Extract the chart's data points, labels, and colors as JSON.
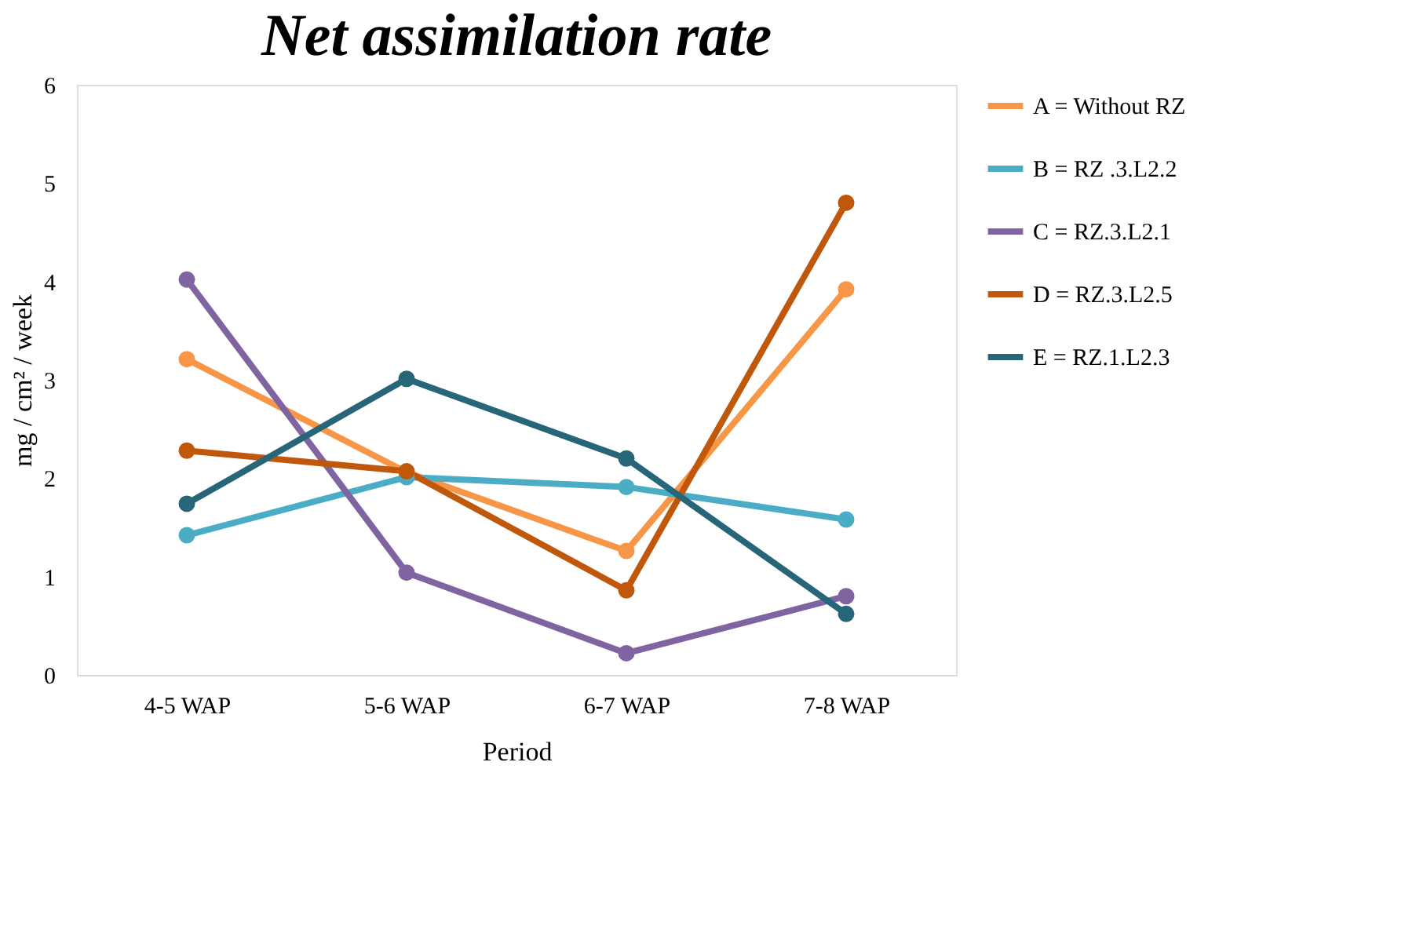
{
  "chart_data": {
    "type": "line",
    "title": "Net assimilation rate",
    "xlabel": "Period",
    "ylabel": "mg / cm² / week",
    "categories": [
      "4-5 WAP",
      "5-6 WAP",
      "6-7 WAP",
      "7-8 WAP"
    ],
    "series": [
      {
        "name": "A = Without RZ",
        "color": "#f79646",
        "values": [
          3.21,
          2.06,
          1.26,
          3.92
        ]
      },
      {
        "name": "B = RZ .3.L2.2",
        "color": "#4bacc6",
        "values": [
          1.42,
          2.01,
          1.91,
          1.58
        ]
      },
      {
        "name": "C = RZ.3.L2.1",
        "color": "#8064a2",
        "values": [
          4.02,
          1.04,
          0.22,
          0.8
        ]
      },
      {
        "name": "D = RZ.3.L2.5",
        "color": "#c0580c",
        "values": [
          2.28,
          2.07,
          0.86,
          4.8
        ]
      },
      {
        "name": "E = RZ.1.L2.3",
        "color": "#266678",
        "values": [
          1.74,
          3.01,
          2.2,
          0.62
        ]
      }
    ],
    "ylim": [
      0,
      6
    ],
    "yticks": [
      0,
      1,
      2,
      3,
      4,
      5,
      6
    ],
    "grid": false,
    "legend": "right",
    "marker": "circle",
    "line_style": "solid"
  }
}
